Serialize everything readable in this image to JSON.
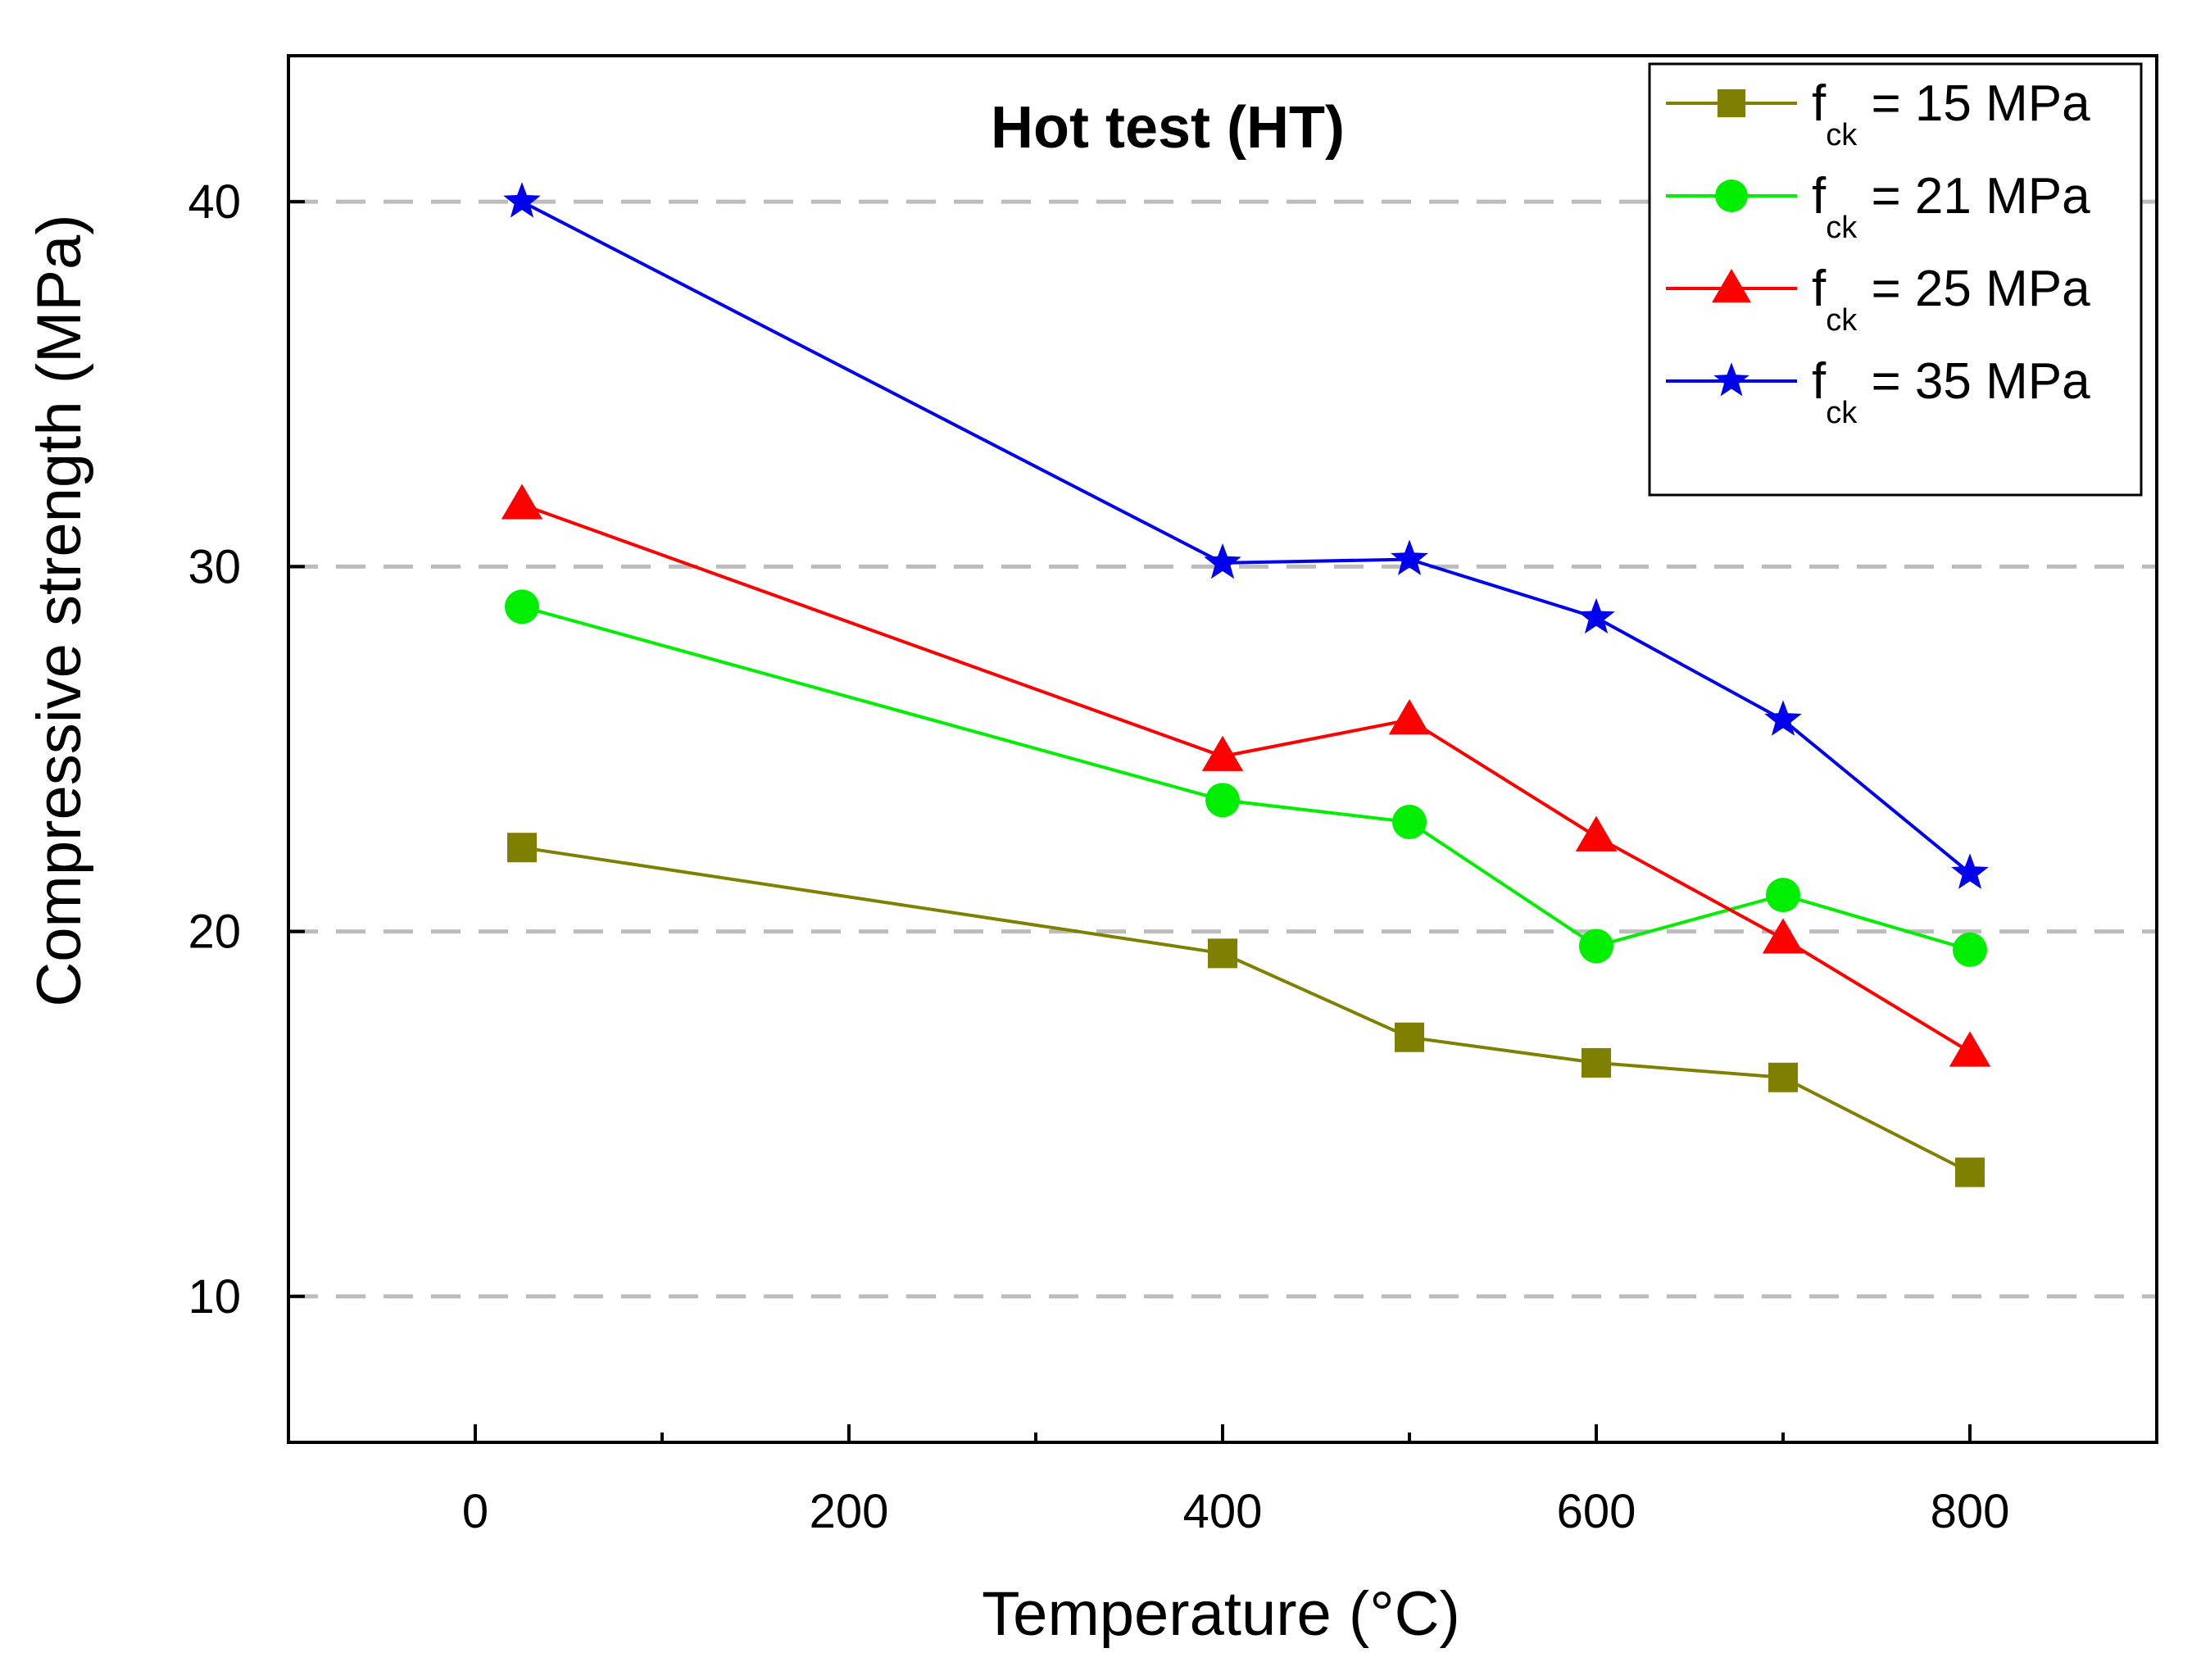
{
  "chart_data": {
    "type": "line",
    "title": "Hot test (HT)",
    "xlabel": "Temperature (°C)",
    "ylabel": "Compressive strength (MPa)",
    "xlim": [
      -100,
      900
    ],
    "ylim": [
      6,
      44
    ],
    "x_ticks": [
      0,
      200,
      400,
      600,
      800
    ],
    "x_tick_labels": [
      "0",
      "200",
      "400",
      "600",
      "800"
    ],
    "x_minor_ticks": [
      100,
      300,
      500,
      700
    ],
    "y_ticks": [
      10,
      20,
      30,
      40
    ],
    "y_tick_labels": [
      "10",
      "20",
      "30",
      "40"
    ],
    "grid": "horizontal dashed",
    "legend_position": "top-right",
    "x": [
      25,
      400,
      500,
      600,
      700,
      800
    ],
    "series": [
      {
        "name": "f_ck = 15 MPa",
        "legend_main": "f",
        "legend_sub": "ck",
        "legend_rest": " = 15 MPa",
        "color": "#808000",
        "marker": "square",
        "values": [
          22.3,
          19.4,
          17.1,
          16.4,
          16.0,
          13.4
        ]
      },
      {
        "name": "f_ck = 21 MPa",
        "legend_main": "f",
        "legend_sub": "ck",
        "legend_rest": " = 21 MPa",
        "color": "#00ee00",
        "marker": "circle",
        "values": [
          28.9,
          23.6,
          23.0,
          19.6,
          21.0,
          19.5
        ]
      },
      {
        "name": "f_ck = 25 MPa",
        "legend_main": "f",
        "legend_sub": "ck",
        "legend_rest": " = 25 MPa",
        "color": "#ff0000",
        "marker": "triangle",
        "values": [
          31.7,
          24.8,
          25.8,
          22.6,
          19.8,
          16.7
        ]
      },
      {
        "name": "f_ck = 35 MPa",
        "legend_main": "f",
        "legend_sub": "ck",
        "legend_rest": " = 35 MPa",
        "color": "#0000ee",
        "marker": "star",
        "values": [
          40.0,
          30.1,
          30.2,
          28.6,
          25.8,
          21.6
        ]
      }
    ]
  }
}
